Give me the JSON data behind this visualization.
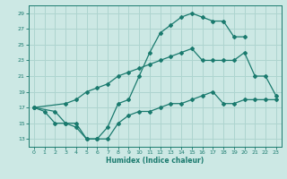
{
  "xlabel": "Humidex (Indice chaleur)",
  "bg_color": "#cce8e4",
  "grid_color": "#aed4cf",
  "line_color": "#1a7a6e",
  "xlim": [
    -0.5,
    23.5
  ],
  "ylim": [
    12.0,
    30.0
  ],
  "xticks": [
    0,
    1,
    2,
    3,
    4,
    5,
    6,
    7,
    8,
    9,
    10,
    11,
    12,
    13,
    14,
    15,
    16,
    17,
    18,
    19,
    20,
    21,
    22,
    23
  ],
  "yticks": [
    13,
    15,
    17,
    19,
    21,
    23,
    25,
    27,
    29
  ],
  "line1_x": [
    0,
    1,
    2,
    3,
    4,
    5,
    6,
    7,
    8,
    9,
    10,
    11,
    12,
    13,
    14,
    15,
    16,
    17,
    18,
    19,
    20
  ],
  "line1_y": [
    17,
    16.5,
    15,
    15,
    15,
    13,
    13,
    14.5,
    17.5,
    18,
    21,
    24,
    26.5,
    27.5,
    28.5,
    29,
    28.5,
    28,
    28,
    26,
    26
  ],
  "line2_x": [
    0,
    3,
    4,
    5,
    6,
    7,
    8,
    9,
    10,
    11,
    12,
    13,
    14,
    15,
    16,
    17,
    18,
    19,
    20,
    21,
    22,
    23
  ],
  "line2_y": [
    17,
    17.5,
    18,
    19,
    19.5,
    20,
    21,
    21.5,
    22,
    22.5,
    23,
    23.5,
    24,
    24.5,
    23,
    23,
    23,
    23,
    24,
    21,
    21,
    18.5
  ],
  "line3_x": [
    0,
    2,
    3,
    4,
    5,
    6,
    7,
    8,
    9,
    10,
    11,
    12,
    13,
    14,
    15,
    16,
    17,
    18,
    19,
    20,
    21,
    22,
    23
  ],
  "line3_y": [
    17,
    16.5,
    15,
    14.5,
    13,
    13,
    13,
    15,
    16,
    16.5,
    16.5,
    17,
    17.5,
    17.5,
    18,
    18.5,
    19,
    17.5,
    17.5,
    18,
    18,
    18,
    18
  ]
}
